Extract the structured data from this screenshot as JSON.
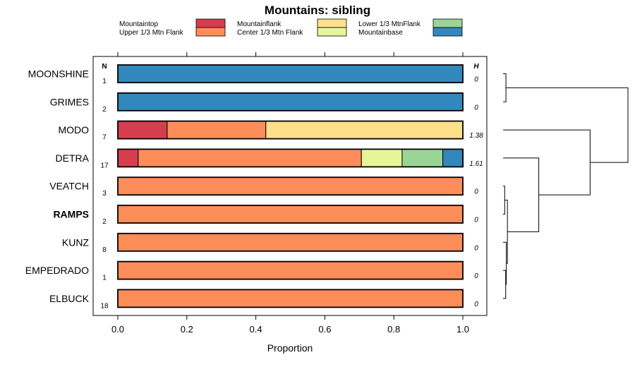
{
  "chart_data": {
    "type": "bar",
    "orientation": "horizontal",
    "stacked": true,
    "title": "Mountains: sibling",
    "xlabel": "Proportion",
    "ylabel": "",
    "xlim": [
      -0.07,
      1.07
    ],
    "x_ticks": [
      0.0,
      0.2,
      0.4,
      0.6,
      0.8,
      1.0
    ],
    "x_tick_labels": [
      "0.0",
      "0.2",
      "0.4",
      "0.6",
      "0.8",
      "1.0"
    ],
    "n_header": "N",
    "h_header": "H",
    "legend": [
      {
        "name": "Mountaintop",
        "color": "#d53e4f"
      },
      {
        "name": "Upper 1/3 Mtn Flank",
        "color": "#fc8d59"
      },
      {
        "name": "Mountainflank",
        "color": "#fee08b"
      },
      {
        "name": "Center 1/3 Mtn Flank",
        "color": "#e6f598"
      },
      {
        "name": "Lower 1/3 MtnFlank",
        "color": "#99d594"
      },
      {
        "name": "Mountainbase",
        "color": "#3288bd"
      }
    ],
    "categories": [
      "MOONSHINE",
      "GRIMES",
      "MODO",
      "DETRA",
      "VEATCH",
      "RAMPS",
      "KUNZ",
      "EMPEDRADO",
      "ELBUCK"
    ],
    "highlighted_category": "RAMPS",
    "n": [
      1,
      2,
      7,
      17,
      3,
      2,
      8,
      1,
      18
    ],
    "h": [
      "0",
      "0",
      "1.38",
      "1.61",
      "0",
      "0",
      "0",
      "0",
      "0"
    ],
    "series": [
      {
        "name": "Mountaintop",
        "values": [
          0,
          0,
          0.143,
          0.059,
          0,
          0,
          0,
          0,
          0
        ]
      },
      {
        "name": "Upper 1/3 Mtn Flank",
        "values": [
          0,
          0,
          0.286,
          0.647,
          1,
          1,
          1,
          1,
          1
        ]
      },
      {
        "name": "Mountainflank",
        "values": [
          0,
          0,
          0.571,
          0,
          0,
          0,
          0,
          0,
          0
        ]
      },
      {
        "name": "Center 1/3 Mtn Flank",
        "values": [
          0,
          0,
          0,
          0.118,
          0,
          0,
          0,
          0,
          0
        ]
      },
      {
        "name": "Lower 1/3 MtnFlank",
        "values": [
          0,
          0,
          0,
          0.118,
          0,
          0,
          0,
          0,
          0
        ]
      },
      {
        "name": "Mountainbase",
        "values": [
          1,
          1,
          0,
          0.059,
          0,
          0,
          0,
          0,
          0
        ]
      }
    ],
    "dendrogram": {
      "leaves": [
        "MOONSHINE",
        "GRIMES",
        "MODO",
        "DETRA",
        "VEATCH",
        "RAMPS",
        "KUNZ",
        "EMPEDRADO",
        "ELBUCK"
      ],
      "merges": [
        {
          "id": "A",
          "left": 4,
          "right": 5,
          "height": 0.013
        },
        {
          "id": "B",
          "left": 7,
          "right": 8,
          "height": 0.021
        },
        {
          "id": "C",
          "left": 6,
          "right": "B",
          "height": 0.026
        },
        {
          "id": "D",
          "left": "A",
          "right": "C",
          "height": 0.035
        },
        {
          "id": "E",
          "left": 0,
          "right": 1,
          "height": 0.023
        },
        {
          "id": "F",
          "left": 3,
          "right": "D",
          "height": 0.286
        },
        {
          "id": "G",
          "left": 2,
          "right": "F",
          "height": 0.697
        },
        {
          "id": "H",
          "left": "E",
          "right": "G",
          "height": 1.0
        }
      ]
    }
  }
}
